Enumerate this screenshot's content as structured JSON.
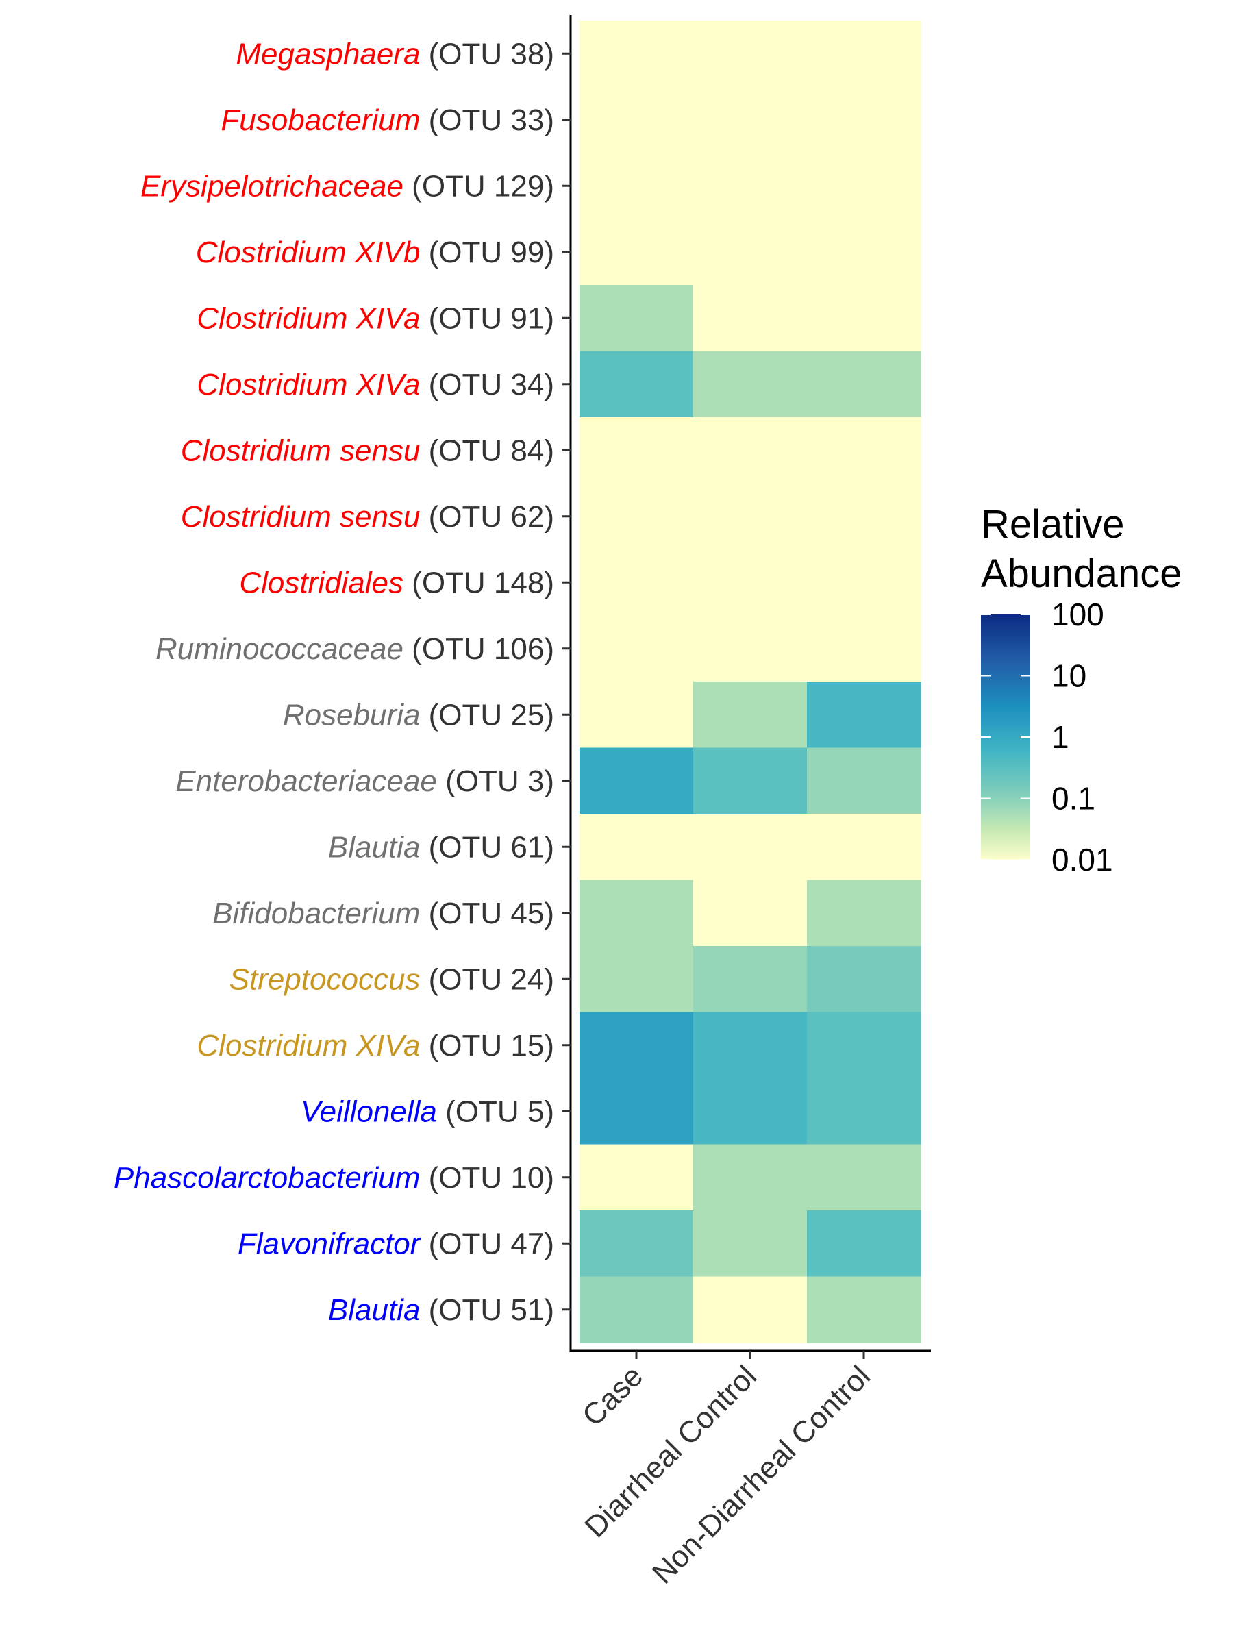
{
  "colors": {
    "red": "#ff0000",
    "gray": "#707070",
    "gold": "#c8961e",
    "blue": "#0000ff"
  },
  "chart_data": {
    "type": "heatmap",
    "x_categories": [
      "Case",
      "Diarrheal Control",
      "Non-Diarrheal Control"
    ],
    "rows": [
      {
        "genus": "Megasphaera",
        "otu": "(OTU 38)",
        "color": "#ff0000",
        "values": [
          0.01,
          0.01,
          0.01
        ]
      },
      {
        "genus": "Fusobacterium",
        "otu": "(OTU 33)",
        "color": "#ff0000",
        "values": [
          0.01,
          0.01,
          0.01
        ]
      },
      {
        "genus": "Erysipelotrichaceae",
        "otu": "(OTU 129)",
        "color": "#ff0000",
        "values": [
          0.01,
          0.01,
          0.01
        ]
      },
      {
        "genus": "Clostridium XIVb",
        "otu": "(OTU 99)",
        "color": "#ff0000",
        "values": [
          0.01,
          0.01,
          0.01
        ]
      },
      {
        "genus": "Clostridium XIVa",
        "otu": "(OTU 91)",
        "color": "#ff0000",
        "values": [
          0.05,
          0.01,
          0.01
        ]
      },
      {
        "genus": "Clostridium XIVa",
        "otu": "(OTU 34)",
        "color": "#ff0000",
        "values": [
          0.3,
          0.05,
          0.05
        ]
      },
      {
        "genus": "Clostridium sensu",
        "otu": "(OTU 84)",
        "color": "#ff0000",
        "values": [
          0.01,
          0.01,
          0.01
        ]
      },
      {
        "genus": "Clostridium sensu",
        "otu": "(OTU 62)",
        "color": "#ff0000",
        "values": [
          0.01,
          0.01,
          0.01
        ]
      },
      {
        "genus": "Clostridiales",
        "otu": "(OTU 148)",
        "color": "#ff0000",
        "values": [
          0.01,
          0.01,
          0.01
        ]
      },
      {
        "genus": "Ruminococcaceae",
        "otu": "(OTU 106)",
        "color": "#707070",
        "values": [
          0.01,
          0.01,
          0.01
        ]
      },
      {
        "genus": "Roseburia",
        "otu": "(OTU 25)",
        "color": "#707070",
        "values": [
          0.01,
          0.05,
          0.5
        ]
      },
      {
        "genus": "Enterobacteriaceae",
        "otu": "(OTU 3)",
        "color": "#707070",
        "values": [
          1,
          0.3,
          0.08
        ]
      },
      {
        "genus": "Blautia",
        "otu": "(OTU 61)",
        "color": "#707070",
        "values": [
          0.01,
          0.01,
          0.01
        ]
      },
      {
        "genus": "Bifidobacterium",
        "otu": "(OTU 45)",
        "color": "#707070",
        "values": [
          0.05,
          0.01,
          0.05
        ]
      },
      {
        "genus": "Streptococcus",
        "otu": "(OTU 24)",
        "color": "#c8961e",
        "values": [
          0.05,
          0.08,
          0.15
        ]
      },
      {
        "genus": "Clostridium XIVa",
        "otu": "(OTU 15)",
        "color": "#c8961e",
        "values": [
          1.5,
          0.5,
          0.3
        ]
      },
      {
        "genus": "Veillonella",
        "otu": "(OTU 5)",
        "color": "#0000ff",
        "values": [
          1.5,
          0.5,
          0.3
        ]
      },
      {
        "genus": "Phascolarctobacterium",
        "otu": "(OTU 10)",
        "color": "#0000ff",
        "values": [
          0.01,
          0.05,
          0.05
        ]
      },
      {
        "genus": "Flavonifractor",
        "otu": "(OTU 47)",
        "color": "#0000ff",
        "values": [
          0.2,
          0.05,
          0.3
        ]
      },
      {
        "genus": "Blautia",
        "otu": "(OTU 51)",
        "color": "#0000ff",
        "values": [
          0.08,
          0.01,
          0.05
        ]
      }
    ],
    "legend": {
      "title_line1": "Relative",
      "title_line2": "Abundance",
      "ticks": [
        "100",
        "10",
        "1",
        "0.1",
        "0.01"
      ],
      "tick_values": [
        100,
        10,
        1,
        0.1,
        0.01
      ],
      "scale": "log10",
      "range": [
        0.01,
        100
      ],
      "palette": [
        "#ffffcc",
        "#c7e9b4",
        "#7fcdbb",
        "#41b6c4",
        "#1d91c0",
        "#225ea8",
        "#0c2c84"
      ],
      "placement": "right"
    },
    "grid": false
  }
}
